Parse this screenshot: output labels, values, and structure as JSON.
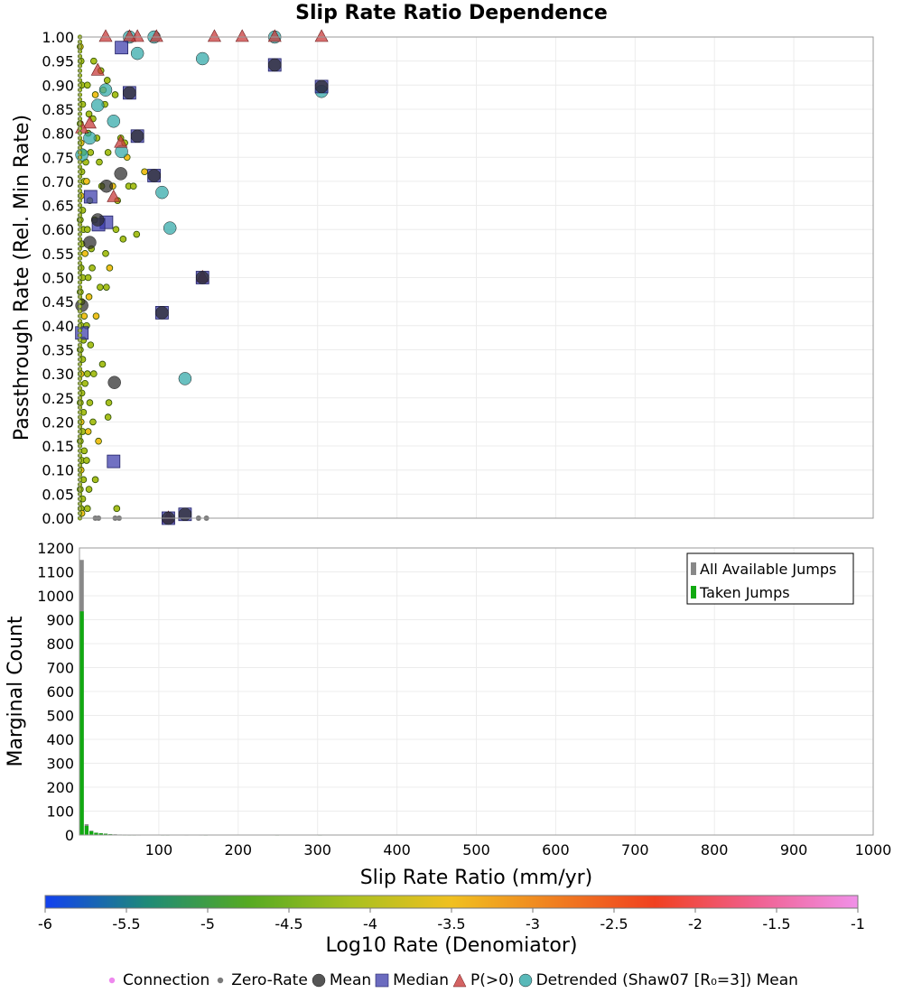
{
  "title": "Slip Rate Ratio Dependence",
  "colors": {
    "background": "#ffffff",
    "grid": "#ececec",
    "axis": "#9a9a9a",
    "mean": "#2b2b2b",
    "median": "#3a3aaa",
    "pgt0": "#c83c3c",
    "detrended": "#2fa8a8",
    "zero_rate": "#7a7a7a",
    "connection": "#ee88ee",
    "all_jumps": "#888888",
    "taken_jumps": "#11aa11"
  },
  "colorbar": {
    "label": "Log10 Rate (Denomiator)",
    "min": -6,
    "max": -1,
    "ticks": [
      "-6",
      "-5.5",
      "-5",
      "-4.5",
      "-4",
      "-3.5",
      "-3",
      "-2.5",
      "-2",
      "-1.5",
      "-1"
    ],
    "stops": [
      "#1240f0",
      "#1e8a78",
      "#55aa22",
      "#a8c020",
      "#f0c020",
      "#f08020",
      "#f04020",
      "#f06090",
      "#f090e8"
    ]
  },
  "bottom_legend": [
    {
      "symbol": "dot",
      "color": "#ee88ee",
      "label": "Connection"
    },
    {
      "symbol": "dot",
      "color": "#7a7a7a",
      "label": "Zero-Rate"
    },
    {
      "symbol": "circle",
      "color": "#2b2b2b",
      "label": "Mean"
    },
    {
      "symbol": "square",
      "color": "#3a3aaa",
      "label": "Median"
    },
    {
      "symbol": "triangle",
      "color": "#c83c3c",
      "label": "P(>0)"
    },
    {
      "symbol": "circle",
      "color": "#2fa8a8",
      "label": "Detrended (Shaw07 [R₀=3]) Mean"
    }
  ],
  "chart_data": [
    {
      "type": "scatter",
      "ylabel": "Passthrough Rate (Rel. Min Rate)",
      "xlim": [
        0,
        1000
      ],
      "ylim": [
        0,
        1
      ],
      "y_ticks": [
        "0.00",
        "0.05",
        "0.10",
        "0.15",
        "0.20",
        "0.25",
        "0.30",
        "0.35",
        "0.40",
        "0.45",
        "0.50",
        "0.55",
        "0.60",
        "0.65",
        "0.70",
        "0.75",
        "0.80",
        "0.85",
        "0.90",
        "0.95",
        "1.00"
      ],
      "grid": true,
      "series": [
        {
          "name": "Mean",
          "points": [
            [
              305,
              0.897
            ],
            [
              246,
              0.942
            ],
            [
              155,
              0.5
            ],
            [
              133,
              0.008
            ],
            [
              112,
              0.0
            ],
            [
              104,
              0.427
            ],
            [
              94,
              0.712
            ],
            [
              73,
              0.794
            ],
            [
              63,
              0.884
            ],
            [
              52,
              0.716
            ],
            [
              44,
              0.282
            ],
            [
              34,
              0.69
            ],
            [
              23,
              0.62
            ],
            [
              13,
              0.573
            ],
            [
              3,
              0.442
            ]
          ]
        },
        {
          "name": "Median",
          "points": [
            [
              305,
              0.897
            ],
            [
              246,
              0.942
            ],
            [
              155,
              0.5
            ],
            [
              133,
              0.008
            ],
            [
              112,
              0.0
            ],
            [
              104,
              0.427
            ],
            [
              94,
              0.712
            ],
            [
              73,
              0.794
            ],
            [
              63,
              0.884
            ],
            [
              53,
              0.978
            ],
            [
              43,
              0.118
            ],
            [
              34,
              0.615
            ],
            [
              24,
              0.61
            ],
            [
              14,
              0.668
            ],
            [
              3,
              0.385
            ]
          ]
        },
        {
          "name": "P(>0)",
          "points": [
            [
              305,
              1.0
            ],
            [
              246,
              1.0
            ],
            [
              205,
              1.0
            ],
            [
              170,
              1.0
            ],
            [
              155,
              0.5
            ],
            [
              112,
              0.0
            ],
            [
              97,
              1.0
            ],
            [
              73,
              1.0
            ],
            [
              63,
              1.0
            ],
            [
              52,
              0.78
            ],
            [
              43,
              0.667
            ],
            [
              33,
              1.0
            ],
            [
              23,
              0.93
            ],
            [
              13,
              0.82
            ],
            [
              3,
              0.81
            ]
          ]
        },
        {
          "name": "Detrended (Shaw07 [R₀=3]) Mean",
          "points": [
            [
              305,
              0.887
            ],
            [
              246,
              1.0
            ],
            [
              155,
              0.955
            ],
            [
              133,
              0.29
            ],
            [
              114,
              0.603
            ],
            [
              104,
              0.677
            ],
            [
              94,
              1.0
            ],
            [
              73,
              0.966
            ],
            [
              63,
              1.0
            ],
            [
              53,
              0.762
            ],
            [
              43,
              0.825
            ],
            [
              33,
              0.89
            ],
            [
              23,
              0.858
            ],
            [
              13,
              0.79
            ],
            [
              3,
              0.755
            ]
          ]
        },
        {
          "name": "Zero-Rate",
          "points": [
            [
              45,
              0.0
            ],
            [
              50,
              0.0
            ],
            [
              20,
              0.0
            ],
            [
              24,
              0.0
            ],
            [
              150,
              0.0
            ],
            [
              160,
              0.0
            ],
            [
              115,
              0.0
            ]
          ]
        },
        {
          "name": "Connection",
          "points": [
            [
              1,
              0.98
            ],
            [
              2,
              0.95
            ],
            [
              3,
              0.9
            ],
            [
              4,
              0.86
            ],
            [
              1,
              0.82
            ],
            [
              2,
              0.78
            ],
            [
              5,
              0.76
            ],
            [
              8,
              0.74
            ],
            [
              3,
              0.72
            ],
            [
              6,
              0.7
            ],
            [
              2,
              0.67
            ],
            [
              4,
              0.64
            ],
            [
              1,
              0.62
            ],
            [
              5,
              0.6
            ],
            [
              3,
              0.57
            ],
            [
              7,
              0.55
            ],
            [
              2,
              0.52
            ],
            [
              4,
              0.5
            ],
            [
              1,
              0.47
            ],
            [
              3,
              0.45
            ],
            [
              6,
              0.42
            ],
            [
              2,
              0.4
            ],
            [
              5,
              0.37
            ],
            [
              1,
              0.35
            ],
            [
              4,
              0.33
            ],
            [
              2,
              0.3
            ],
            [
              7,
              0.28
            ],
            [
              3,
              0.26
            ],
            [
              1,
              0.24
            ],
            [
              5,
              0.22
            ],
            [
              2,
              0.2
            ],
            [
              4,
              0.18
            ],
            [
              1,
              0.16
            ],
            [
              6,
              0.14
            ],
            [
              3,
              0.12
            ],
            [
              2,
              0.1
            ],
            [
              5,
              0.08
            ],
            [
              1,
              0.06
            ],
            [
              4,
              0.04
            ],
            [
              2,
              0.02
            ],
            [
              3,
              0.01
            ],
            [
              10,
              0.9
            ],
            [
              12,
              0.84
            ],
            [
              11,
              0.8
            ],
            [
              14,
              0.76
            ],
            [
              9,
              0.7
            ],
            [
              13,
              0.66
            ],
            [
              10,
              0.6
            ],
            [
              15,
              0.56
            ],
            [
              11,
              0.5
            ],
            [
              12,
              0.46
            ],
            [
              9,
              0.4
            ],
            [
              14,
              0.36
            ],
            [
              10,
              0.3
            ],
            [
              13,
              0.24
            ],
            [
              11,
              0.18
            ],
            [
              9,
              0.12
            ],
            [
              12,
              0.06
            ],
            [
              10,
              0.02
            ],
            [
              18,
              0.95
            ],
            [
              20,
              0.88
            ],
            [
              17,
              0.83
            ],
            [
              22,
              0.79
            ],
            [
              19,
              0.62
            ],
            [
              16,
              0.52
            ],
            [
              21,
              0.42
            ],
            [
              18,
              0.3
            ],
            [
              17,
              0.2
            ],
            [
              20,
              0.08
            ],
            [
              27,
              0.93
            ],
            [
              30,
              0.89
            ],
            [
              25,
              0.74
            ],
            [
              28,
              0.69
            ],
            [
              26,
              0.48
            ],
            [
              29,
              0.32
            ],
            [
              24,
              0.16
            ],
            [
              35,
              0.91
            ],
            [
              32,
              0.86
            ],
            [
              36,
              0.76
            ],
            [
              33,
              0.55
            ],
            [
              38,
              0.52
            ],
            [
              34,
              0.48
            ],
            [
              37,
              0.24
            ],
            [
              36,
              0.21
            ],
            [
              45,
              0.88
            ],
            [
              42,
              0.69
            ],
            [
              48,
              0.66
            ],
            [
              46,
              0.6
            ],
            [
              52,
              0.79
            ],
            [
              57,
              0.78
            ],
            [
              60,
              0.75
            ],
            [
              55,
              0.58
            ],
            [
              62,
              0.69
            ],
            [
              68,
              0.69
            ],
            [
              72,
              0.59
            ],
            [
              82,
              0.72
            ],
            [
              47,
              0.02
            ]
          ]
        }
      ]
    },
    {
      "type": "bar",
      "ylabel": "Marginal Count",
      "xlabel": "Slip Rate Ratio (mm/yr)",
      "xlim": [
        0,
        1000
      ],
      "ylim": [
        0,
        1200
      ],
      "x_ticks": [
        "100",
        "200",
        "300",
        "400",
        "500",
        "600",
        "700",
        "800",
        "900",
        "1000"
      ],
      "y_ticks": [
        "0",
        "100",
        "200",
        "300",
        "400",
        "500",
        "600",
        "700",
        "800",
        "900",
        "1000",
        "1100",
        "1200"
      ],
      "bin_width": 6,
      "grid": true,
      "legend_position": "top-right",
      "series": [
        {
          "name": "All Available Jumps",
          "bins": [
            [
              0,
              1150
            ],
            [
              6,
              45
            ],
            [
              12,
              18
            ],
            [
              18,
              10
            ],
            [
              24,
              8
            ],
            [
              30,
              6
            ],
            [
              36,
              4
            ],
            [
              42,
              3
            ],
            [
              48,
              2
            ],
            [
              54,
              2
            ],
            [
              60,
              1
            ],
            [
              66,
              1
            ],
            [
              72,
              1
            ],
            [
              102,
              1
            ],
            [
              108,
              1
            ],
            [
              132,
              1
            ],
            [
              150,
              1
            ],
            [
              156,
              1
            ],
            [
              246,
              1
            ],
            [
              300,
              1
            ]
          ]
        },
        {
          "name": "Taken Jumps",
          "bins": [
            [
              0,
              935
            ],
            [
              6,
              38
            ],
            [
              12,
              16
            ],
            [
              18,
              9
            ],
            [
              24,
              7
            ],
            [
              30,
              5
            ],
            [
              36,
              3
            ],
            [
              42,
              2
            ],
            [
              48,
              2
            ],
            [
              54,
              1
            ],
            [
              60,
              1
            ],
            [
              66,
              1
            ],
            [
              102,
              1
            ],
            [
              108,
              1
            ],
            [
              156,
              1
            ],
            [
              246,
              1
            ],
            [
              300,
              1
            ]
          ]
        }
      ]
    }
  ]
}
